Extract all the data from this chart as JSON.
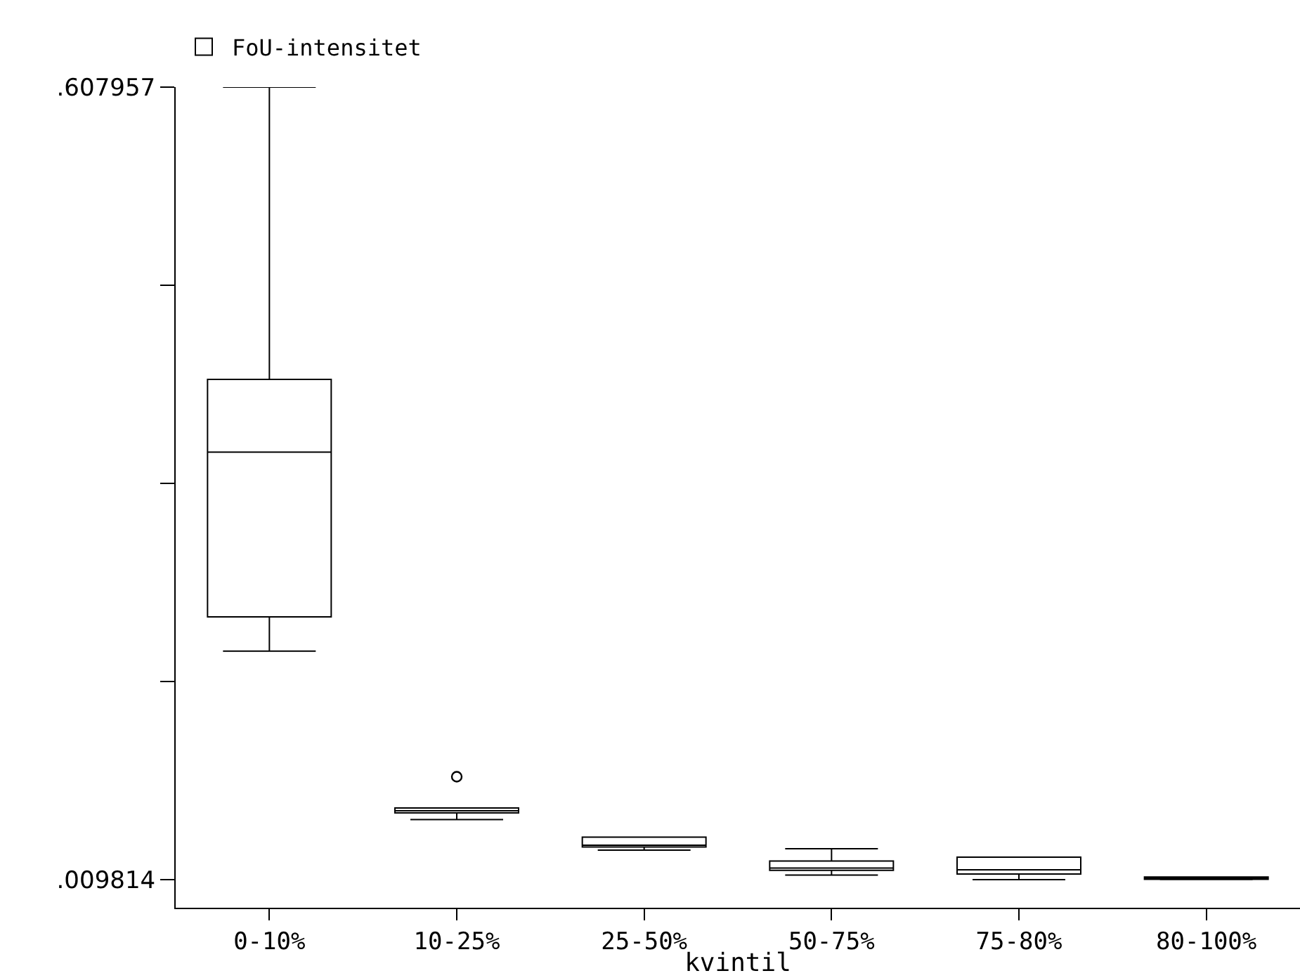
{
  "chart_data": {
    "type": "box",
    "xlabel": "kvintil",
    "categories": [
      "0-10%",
      "10-25%",
      "25-50%",
      "50-75%",
      "75-80%",
      "80-100%"
    ],
    "series": [
      {
        "name": "FoU-intensitet",
        "color": "#000000",
        "boxes": [
          {
            "low": 0.1823,
            "q1": 0.2081,
            "median": 0.3325,
            "q3": 0.3874,
            "high": 0.607957
          },
          {
            "low": 0.0551,
            "q1": 0.0602,
            "median": 0.0618,
            "q3": 0.0639,
            "high": 0.0639,
            "outliers": [
              0.0875
            ]
          },
          {
            "low": 0.0321,
            "q1": 0.0345,
            "median": 0.0358,
            "q3": 0.0419,
            "high": 0.0419
          },
          {
            "low": 0.0133,
            "q1": 0.0169,
            "median": 0.0186,
            "q3": 0.0239,
            "high": 0.0331
          },
          {
            "low": 0.009814,
            "q1": 0.0141,
            "median": 0.0172,
            "q3": 0.0268,
            "high": 0.0268
          },
          {
            "low": 0.0099,
            "q1": 0.0101,
            "median": 0.0107,
            "q3": 0.0118,
            "high": 0.0118
          }
        ]
      }
    ],
    "ylim": [
      -0.0114,
      0.607957
    ],
    "yticks": [
      {
        "value": 0.009814,
        "label": ".009814"
      },
      {
        "value": 0.15935,
        "label": null
      },
      {
        "value": 0.30889,
        "label": null
      },
      {
        "value": 0.45842,
        "label": null
      },
      {
        "value": 0.607957,
        "label": ".607957"
      }
    ],
    "legend": "top left"
  }
}
